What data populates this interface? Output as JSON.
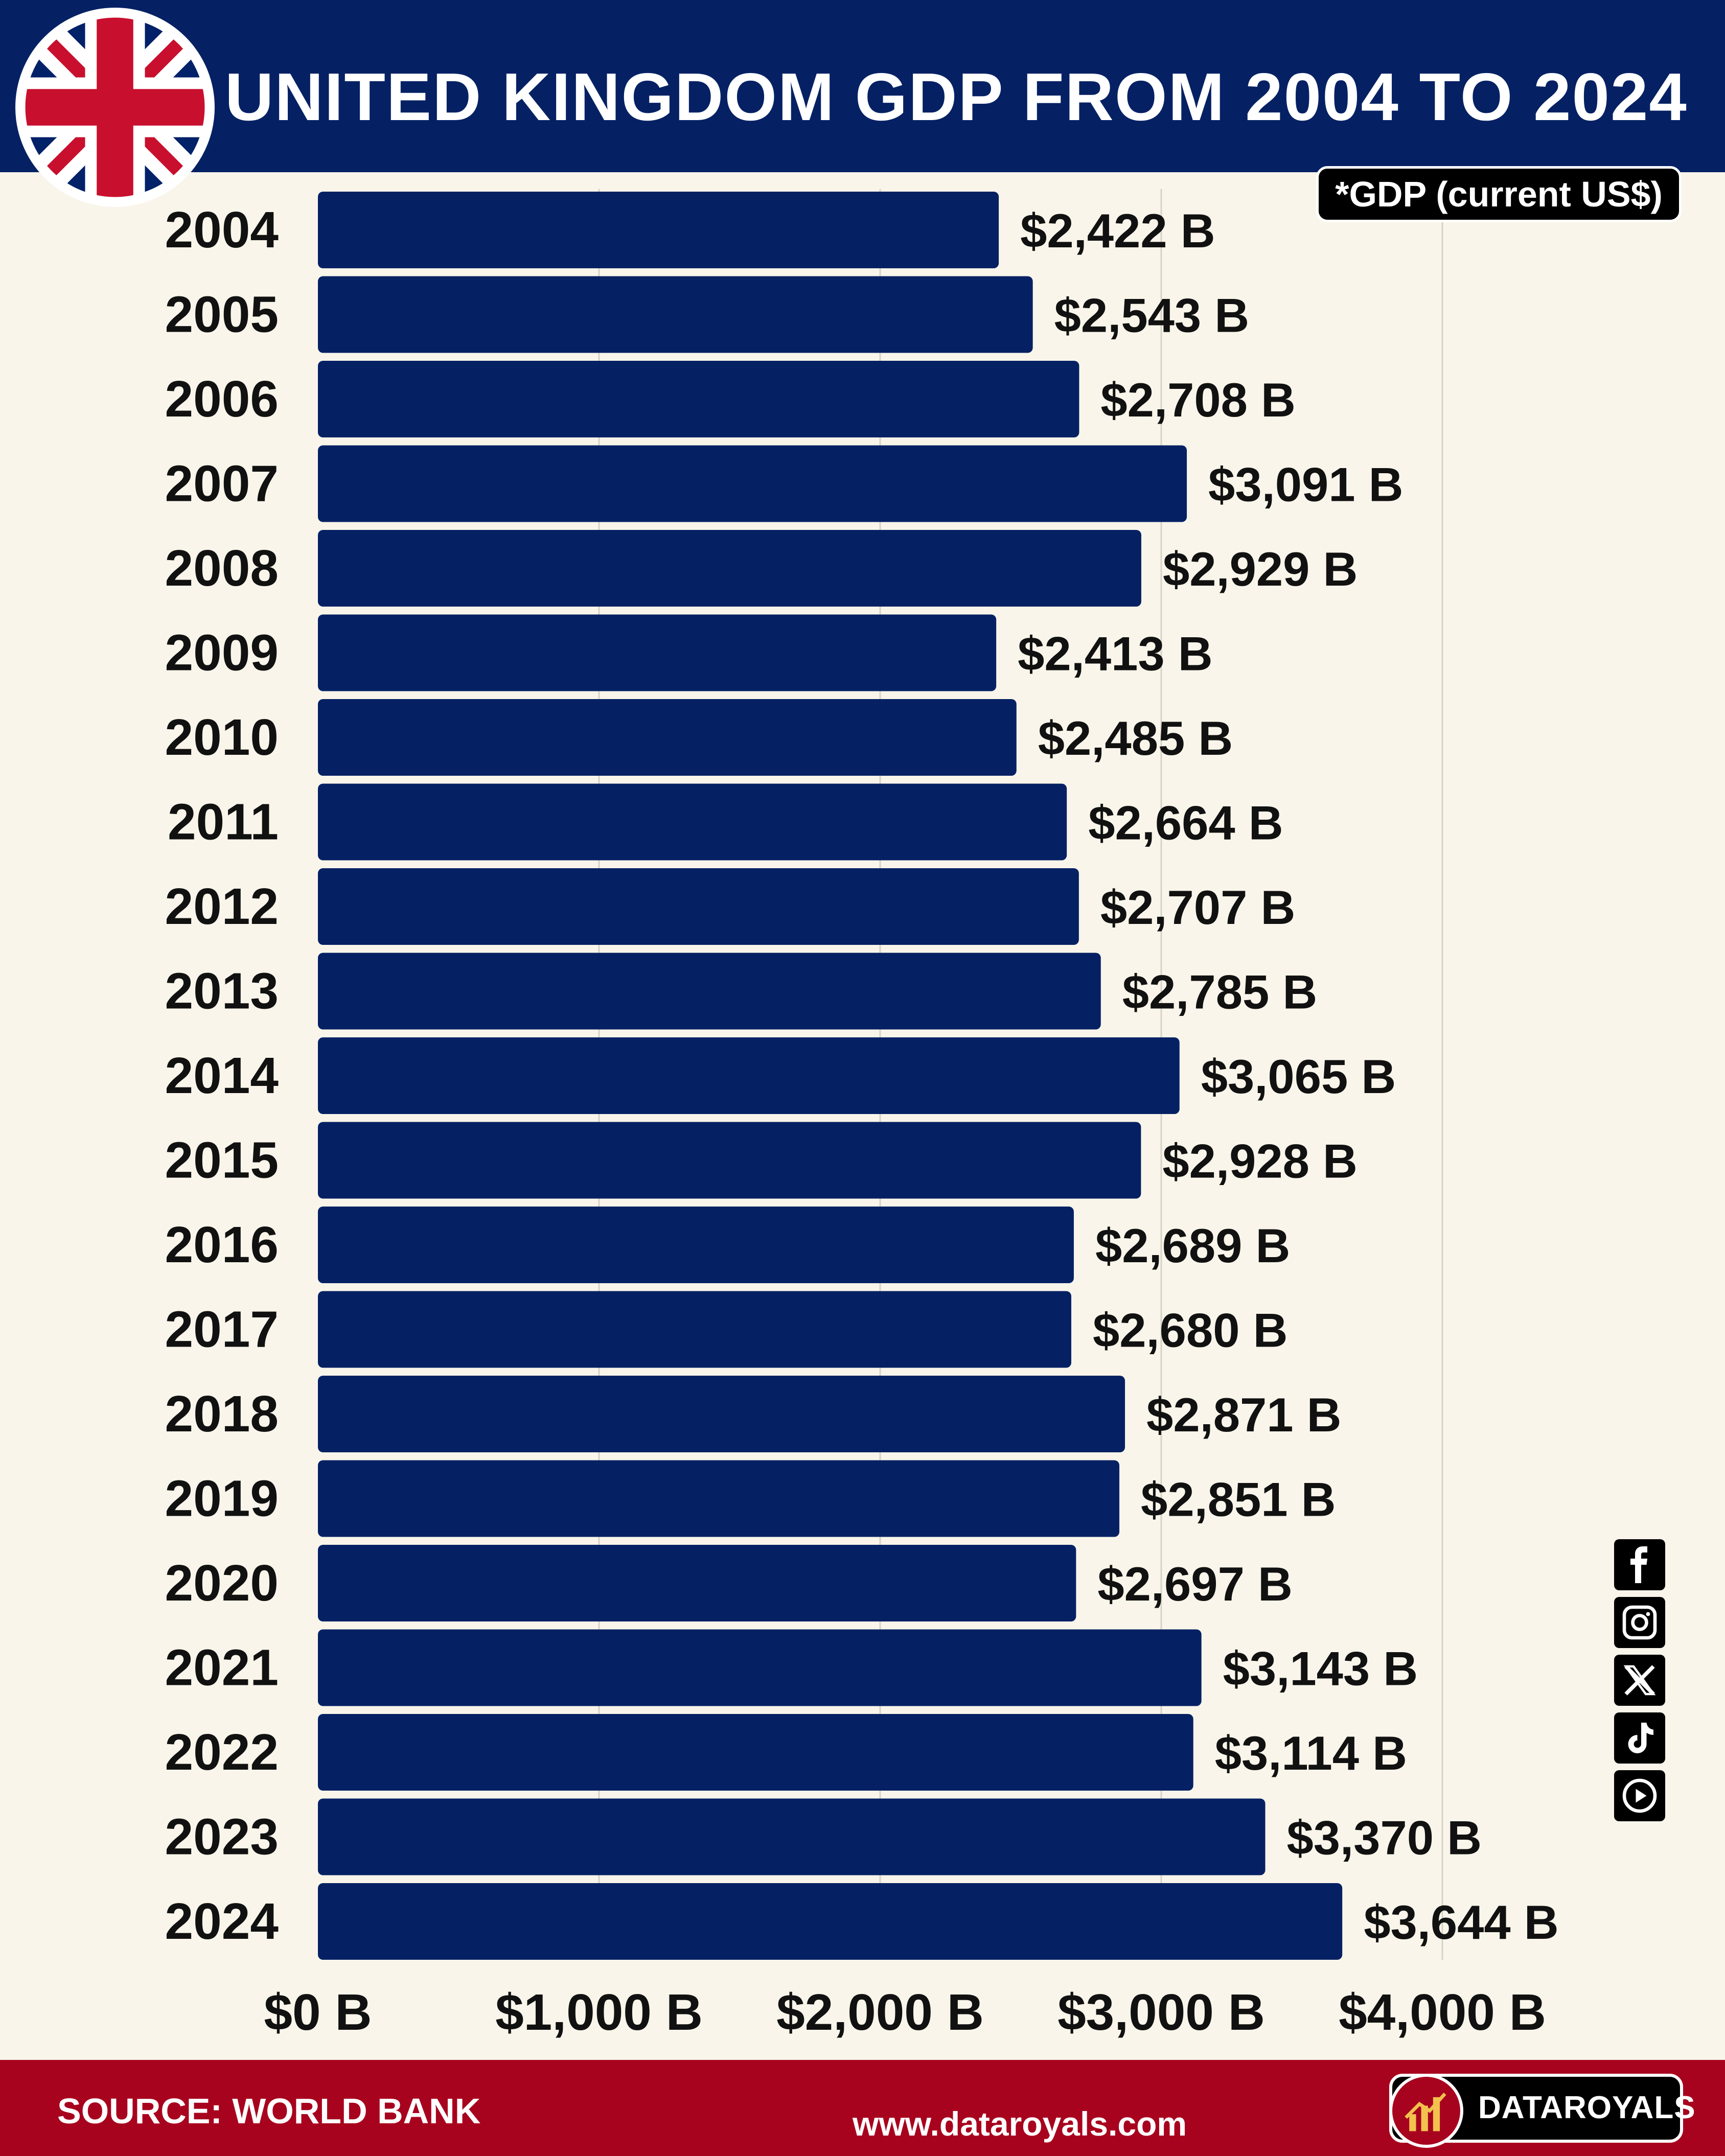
{
  "header": {
    "title": "UNITED KINGDOM GDP FROM 2004 TO 2024"
  },
  "badge": {
    "text": "*GDP (current US$)"
  },
  "colors": {
    "bar": "#052164",
    "header_bg": "#052164",
    "footer_bg": "#a8031e",
    "background": "#f9f5ea",
    "text": "#111111"
  },
  "chart_data": {
    "type": "bar",
    "orientation": "horizontal",
    "title": "UNITED KINGDOM GDP FROM 2004 TO 2024",
    "categories": [
      "2004",
      "2005",
      "2006",
      "2007",
      "2008",
      "2009",
      "2010",
      "2011",
      "2012",
      "2013",
      "2014",
      "2015",
      "2016",
      "2017",
      "2018",
      "2019",
      "2020",
      "2021",
      "2022",
      "2023",
      "2024"
    ],
    "values": [
      2422,
      2543,
      2708,
      3091,
      2929,
      2413,
      2485,
      2664,
      2707,
      2785,
      3065,
      2928,
      2689,
      2680,
      2871,
      2851,
      2697,
      3143,
      3114,
      3370,
      3644
    ],
    "data_labels": [
      "$2,422 B",
      "$2,543 B",
      "$2,708 B",
      "$3,091 B",
      "$2,929 B",
      "$2,413 B",
      "$2,485 B",
      "$2,664 B",
      "$2,707 B",
      "$2,785 B",
      "$3,065 B",
      "$2,928 B",
      "$2,689 B",
      "$2,680 B",
      "$2,871 B",
      "$2,851 B",
      "$2,697 B",
      "$3,143 B",
      "$3,114 B",
      "$3,370 B",
      "$3,644 B"
    ],
    "x_ticks": [
      0,
      1000,
      2000,
      3000,
      4000
    ],
    "x_tick_labels": [
      "$0 B",
      "$1,000 B",
      "$2,000 B",
      "$3,000 B",
      "$4,000 B"
    ],
    "xlim": [
      0,
      4000
    ],
    "grid": "vertical",
    "legend": "none"
  },
  "social": {
    "icons": [
      "facebook-icon",
      "instagram-icon",
      "x-icon",
      "tiktok-icon",
      "youtube-icon"
    ]
  },
  "footer": {
    "source": "SOURCE: WORLD BANK",
    "website": "www.dataroyals.com",
    "brand": "DATAROYALS"
  }
}
